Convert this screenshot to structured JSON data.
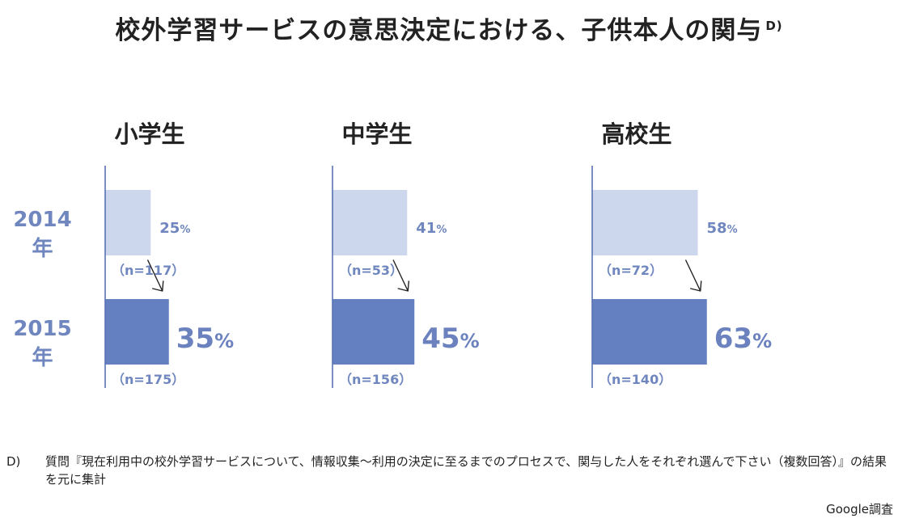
{
  "title": "校外学習サービスの意思決定における、子供本人の関与",
  "title_note": "D)",
  "y_labels": [
    "2014 年",
    "2015 年"
  ],
  "footnote": {
    "mark": "D)",
    "text": "質問『現在利用中の校外学習サービスについて、情報収集～利用の決定に至るまでのプロセスで、関与した人をそれぞれ選んで下さい（複数回答）』の結果を元に集計"
  },
  "source": "Google調査",
  "colors": {
    "bar_2014": "#ccd6ec",
    "bar_2015": "#6580c0",
    "axis": "#5a72b4",
    "text": "#222222",
    "accent": "#6f86bf"
  },
  "chart_data": [
    {
      "type": "bar",
      "title": "小学生",
      "categories": [
        "2014 年",
        "2015 年"
      ],
      "values": [
        25,
        35
      ],
      "unit": "%",
      "n": [
        "（n=117）",
        "（n=175）"
      ]
    },
    {
      "type": "bar",
      "title": "中学生",
      "categories": [
        "2014 年",
        "2015 年"
      ],
      "values": [
        41,
        45
      ],
      "unit": "%",
      "n": [
        "（n=53）",
        "（n=156）"
      ]
    },
    {
      "type": "bar",
      "title": "高校生",
      "categories": [
        "2014 年",
        "2015 年"
      ],
      "values": [
        58,
        63
      ],
      "unit": "%",
      "n": [
        "（n=72）",
        "（n=140）"
      ]
    }
  ]
}
